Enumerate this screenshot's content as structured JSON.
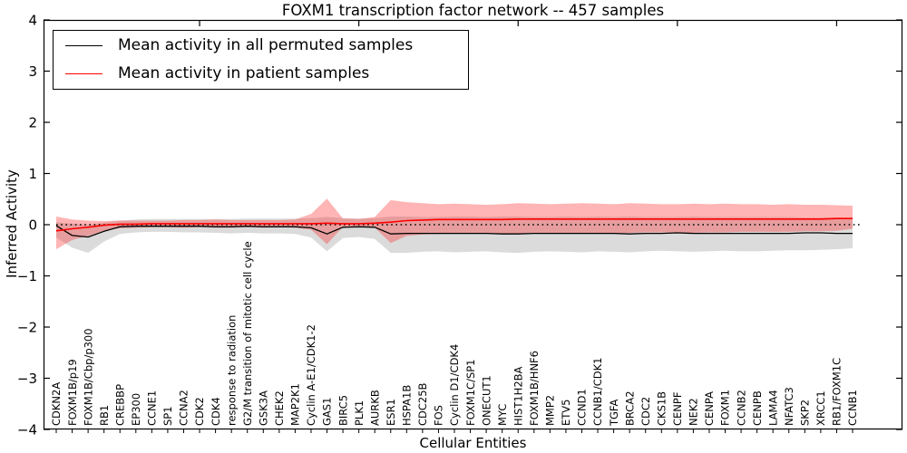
{
  "chart_data": {
    "type": "line",
    "title": "FOXM1 transcription factor network -- 457 samples",
    "xlabel": "Cellular Entities",
    "ylabel": "Inferred Activity",
    "ylim": [
      -4,
      4
    ],
    "y_tick_labels": [
      "4",
      "3",
      "2",
      "1",
      "0",
      "−1",
      "−2",
      "−3",
      "−4"
    ],
    "zero_reference_line": 0,
    "legend_position": "upper left",
    "grid": "off",
    "series_labels": {
      "permuted": "Mean activity in all permuted samples",
      "patient": "Mean activity in patient samples"
    },
    "colors": {
      "permuted_line": "#000000",
      "patient_line": "#ff0000",
      "permuted_band": "rgba(127,127,127,0.28)",
      "patient_band": "rgba(255,30,30,0.33)"
    },
    "categories": [
      "CDKN2A",
      "FOXM1B/p19",
      "FOXM1B/Cbp/p300",
      "RB1",
      "CREBBP",
      "EP300",
      "CCNE1",
      "SP1",
      "CCNA2",
      "CDK2",
      "CDK4",
      "response to radiation",
      "G2/M transition of mitotic cell cycle",
      "GSK3A",
      "CHEK2",
      "MAP2K1",
      "Cyclin A-E1/CDK1-2",
      "GAS1",
      "BIRC5",
      "PLK1",
      "AURKB",
      "ESR1",
      "HSPA1B",
      "CDC25B",
      "FOS",
      "Cyclin D1/CDK4",
      "FOXM1C/SP1",
      "ONECUT1",
      "MYC",
      "HIST1H2BA",
      "FOXM1B/HNF6",
      "MMP2",
      "ETV5",
      "CCND1",
      "CCNB1/CDK1",
      "TGFA",
      "BRCA2",
      "CDC2",
      "CKS1B",
      "CENPF",
      "NEK2",
      "CENPA",
      "FOXM1",
      "CCNB2",
      "CENPB",
      "LAMA4",
      "NFATC3",
      "SKP2",
      "XRCC1",
      "RB1/FOXM1C",
      "CCNB1"
    ],
    "series": [
      {
        "name": "Mean activity in all permuted samples",
        "values": [
          -0.02,
          -0.21,
          -0.24,
          -0.13,
          -0.04,
          -0.03,
          -0.03,
          -0.03,
          -0.03,
          -0.03,
          -0.04,
          -0.04,
          -0.03,
          -0.04,
          -0.04,
          -0.04,
          -0.06,
          -0.18,
          -0.05,
          -0.04,
          -0.05,
          -0.18,
          -0.17,
          -0.17,
          -0.17,
          -0.17,
          -0.17,
          -0.17,
          -0.18,
          -0.18,
          -0.17,
          -0.17,
          -0.17,
          -0.17,
          -0.17,
          -0.17,
          -0.18,
          -0.17,
          -0.17,
          -0.16,
          -0.17,
          -0.17,
          -0.17,
          -0.17,
          -0.17,
          -0.17,
          -0.17,
          -0.16,
          -0.16,
          -0.17,
          -0.17
        ],
        "band_low": [
          -0.25,
          -0.45,
          -0.55,
          -0.33,
          -0.18,
          -0.15,
          -0.14,
          -0.14,
          -0.15,
          -0.15,
          -0.16,
          -0.17,
          -0.16,
          -0.17,
          -0.17,
          -0.18,
          -0.25,
          -0.52,
          -0.26,
          -0.24,
          -0.28,
          -0.55,
          -0.55,
          -0.53,
          -0.52,
          -0.54,
          -0.53,
          -0.52,
          -0.54,
          -0.55,
          -0.53,
          -0.52,
          -0.53,
          -0.54,
          -0.52,
          -0.53,
          -0.54,
          -0.52,
          -0.51,
          -0.52,
          -0.53,
          -0.52,
          -0.51,
          -0.52,
          -0.52,
          -0.51,
          -0.5,
          -0.5,
          -0.49,
          -0.48,
          -0.46
        ],
        "band_high": [
          0.05,
          0.02,
          0.0,
          0.04,
          0.08,
          0.1,
          0.11,
          0.11,
          0.11,
          0.11,
          0.11,
          0.11,
          0.12,
          0.12,
          0.12,
          0.12,
          0.13,
          0.15,
          0.13,
          0.12,
          0.13,
          0.16,
          0.16,
          0.15,
          0.15,
          0.16,
          0.16,
          0.15,
          0.16,
          0.16,
          0.15,
          0.15,
          0.16,
          0.15,
          0.16,
          0.15,
          0.16,
          0.15,
          0.15,
          0.15,
          0.16,
          0.15,
          0.15,
          0.15,
          0.15,
          0.15,
          0.15,
          0.14,
          0.14,
          0.14,
          0.13
        ]
      },
      {
        "name": "Mean activity in patient samples",
        "values": [
          -0.12,
          -0.08,
          -0.05,
          -0.01,
          0.01,
          0.01,
          0.02,
          0.02,
          0.02,
          0.02,
          0.02,
          0.02,
          0.02,
          0.02,
          0.02,
          0.02,
          0.02,
          0.03,
          0.02,
          0.02,
          0.03,
          0.05,
          0.08,
          0.09,
          0.1,
          0.1,
          0.1,
          0.1,
          0.1,
          0.11,
          0.11,
          0.11,
          0.11,
          0.11,
          0.11,
          0.11,
          0.11,
          0.11,
          0.11,
          0.11,
          0.11,
          0.11,
          0.11,
          0.11,
          0.11,
          0.11,
          0.11,
          0.11,
          0.11,
          0.12,
          0.12
        ],
        "band_low": [
          -0.48,
          -0.3,
          -0.22,
          -0.12,
          -0.07,
          -0.06,
          -0.05,
          -0.05,
          -0.06,
          -0.05,
          -0.06,
          -0.06,
          -0.05,
          -0.06,
          -0.05,
          -0.06,
          -0.1,
          -0.38,
          -0.04,
          -0.04,
          -0.06,
          -0.36,
          -0.22,
          -0.19,
          -0.18,
          -0.17,
          -0.17,
          -0.16,
          -0.17,
          -0.17,
          -0.16,
          -0.17,
          -0.17,
          -0.16,
          -0.16,
          -0.17,
          -0.16,
          -0.15,
          -0.15,
          -0.15,
          -0.16,
          -0.15,
          -0.15,
          -0.14,
          -0.14,
          -0.14,
          -0.14,
          -0.13,
          -0.13,
          -0.12,
          -0.08
        ],
        "band_high": [
          0.16,
          0.1,
          0.08,
          0.07,
          0.08,
          0.08,
          0.08,
          0.08,
          0.09,
          0.09,
          0.1,
          0.09,
          0.09,
          0.09,
          0.09,
          0.1,
          0.21,
          0.51,
          0.12,
          0.11,
          0.15,
          0.48,
          0.44,
          0.42,
          0.4,
          0.41,
          0.4,
          0.39,
          0.4,
          0.42,
          0.41,
          0.4,
          0.41,
          0.42,
          0.41,
          0.4,
          0.42,
          0.41,
          0.4,
          0.4,
          0.41,
          0.4,
          0.41,
          0.4,
          0.4,
          0.39,
          0.4,
          0.39,
          0.39,
          0.38,
          0.37
        ]
      }
    ]
  }
}
